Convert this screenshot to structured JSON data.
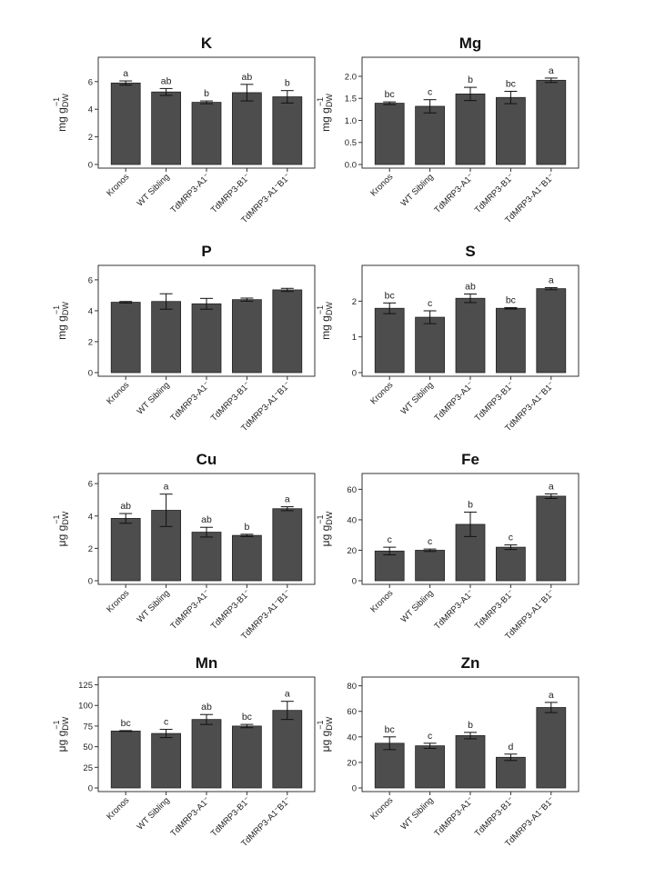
{
  "figure": {
    "bar_color": "#4d4d4d",
    "axis_color": "#333333",
    "text_color": "#222222"
  },
  "chart_data": [
    {
      "type": "bar",
      "title": "K",
      "ylabel": "mg g",
      "ylabel_sub": "DW",
      "ylabel_sup": "−1",
      "categories": [
        "Kronos",
        "WT Sibling",
        "TdMRP3-A1⁻",
        "TdMRP3-B1⁻",
        "TdMRP3-A1⁻B1⁻"
      ],
      "values": [
        5.9,
        5.25,
        4.5,
        5.2,
        4.9
      ],
      "errors": [
        0.15,
        0.25,
        0.1,
        0.6,
        0.45
      ],
      "letters": [
        "a",
        "ab",
        "b",
        "ab",
        "b"
      ],
      "ylim": [
        0,
        7.5
      ],
      "yticks": [
        "0",
        "2",
        "4",
        "6"
      ],
      "grid": false
    },
    {
      "type": "bar",
      "title": "Mg",
      "ylabel": "mg g",
      "ylabel_sub": "DW",
      "ylabel_sup": "−1",
      "categories": [
        "Kronos",
        "WT Sibling",
        "TdMRP3-A1⁻",
        "TdMRP3-B1⁻",
        "TdMRP3-A1⁻B1⁻"
      ],
      "values": [
        1.39,
        1.32,
        1.6,
        1.52,
        1.91
      ],
      "errors": [
        0.03,
        0.15,
        0.15,
        0.14,
        0.05
      ],
      "letters": [
        "bc",
        "c",
        "b",
        "bc",
        "a"
      ],
      "ylim": [
        0,
        2.35
      ],
      "yticks": [
        "0.0",
        "0.5",
        "1.0",
        "1.5",
        "2.0"
      ],
      "grid": false
    },
    {
      "type": "bar",
      "title": "P",
      "ylabel": "mg g",
      "ylabel_sub": "DW",
      "ylabel_sup": "−1",
      "categories": [
        "Kronos",
        "WT Sibling",
        "TdMRP3-A1⁻",
        "TdMRP3-B1⁻",
        "TdMRP3-A1⁻B1⁻"
      ],
      "values": [
        4.55,
        4.6,
        4.45,
        4.72,
        5.35
      ],
      "errors": [
        0.05,
        0.5,
        0.35,
        0.1,
        0.1
      ],
      "letters": [
        "",
        "",
        "",
        "",
        ""
      ],
      "ylim": [
        0,
        6.7
      ],
      "yticks": [
        "0",
        "2",
        "4",
        "6"
      ],
      "grid": false
    },
    {
      "type": "bar",
      "title": "S",
      "ylabel": "mg g",
      "ylabel_sub": "DW",
      "ylabel_sup": "−1",
      "categories": [
        "Kronos",
        "WT Sibling",
        "TdMRP3-A1⁻",
        "TdMRP3-B1⁻",
        "TdMRP3-A1⁻B1⁻"
      ],
      "values": [
        1.8,
        1.55,
        2.08,
        1.8,
        2.35
      ],
      "errors": [
        0.15,
        0.18,
        0.12,
        0.02,
        0.03
      ],
      "letters": [
        "bc",
        "c",
        "ab",
        "bc",
        "a"
      ],
      "ylim": [
        0,
        2.9
      ],
      "yticks": [
        "0",
        "1",
        "2"
      ],
      "grid": false
    },
    {
      "type": "bar",
      "title": "Cu",
      "ylabel": "μg g",
      "ylabel_sub": "DW",
      "ylabel_sup": "−1",
      "categories": [
        "Kronos",
        "WT Sibling",
        "TdMRP3-A1⁻",
        "TdMRP3-B1⁻",
        "TdMRP3-A1⁻B1⁻"
      ],
      "values": [
        3.85,
        4.35,
        3.0,
        2.8,
        4.45
      ],
      "errors": [
        0.3,
        1.0,
        0.3,
        0.07,
        0.12
      ],
      "letters": [
        "ab",
        "a",
        "ab",
        "b",
        "a"
      ],
      "ylim": [
        0,
        6.4
      ],
      "yticks": [
        "0",
        "2",
        "4",
        "6"
      ],
      "grid": false
    },
    {
      "type": "bar",
      "title": "Fe",
      "ylabel": "μg g",
      "ylabel_sub": "DW",
      "ylabel_sup": "−1",
      "categories": [
        "Kronos",
        "WT Sibling",
        "TdMRP3-A1⁻",
        "TdMRP3-B1⁻",
        "TdMRP3-A1⁻B1⁻"
      ],
      "values": [
        19.5,
        20.0,
        37.0,
        22.0,
        55.5
      ],
      "errors": [
        2.5,
        0.8,
        8.0,
        1.5,
        1.5
      ],
      "letters": [
        "c",
        "c",
        "b",
        "c",
        "a"
      ],
      "ylim": [
        0,
        68
      ],
      "yticks": [
        "0",
        "20",
        "40",
        "60"
      ],
      "grid": false
    },
    {
      "type": "bar",
      "title": "Mn",
      "ylabel": "μg g",
      "ylabel_sub": "DW",
      "ylabel_sup": "−1",
      "categories": [
        "Kronos",
        "WT Sibling",
        "TdMRP3-A1⁻",
        "TdMRP3-B1⁻",
        "TdMRP3-A1⁻B1⁻"
      ],
      "values": [
        69,
        66,
        83,
        75,
        94
      ],
      "errors": [
        0.5,
        5,
        6,
        2,
        11
      ],
      "letters": [
        "bc",
        "c",
        "ab",
        "bc",
        "a"
      ],
      "ylim": [
        0,
        130
      ],
      "yticks": [
        "0",
        "25",
        "50",
        "75",
        "100",
        "125"
      ],
      "grid": false
    },
    {
      "type": "bar",
      "title": "Zn",
      "ylabel": "μg g",
      "ylabel_sub": "DW",
      "ylabel_sup": "−1",
      "categories": [
        "Kronos",
        "WT Sibling",
        "TdMRP3-A1⁻",
        "TdMRP3-B1⁻",
        "TdMRP3-A1⁻B1⁻"
      ],
      "values": [
        35,
        33,
        41,
        24,
        63
      ],
      "errors": [
        5,
        2,
        2.5,
        2.5,
        4
      ],
      "letters": [
        "bc",
        "c",
        "b",
        "d",
        "a"
      ],
      "ylim": [
        0,
        84
      ],
      "yticks": [
        "0",
        "20",
        "40",
        "60",
        "80"
      ],
      "grid": false
    }
  ]
}
